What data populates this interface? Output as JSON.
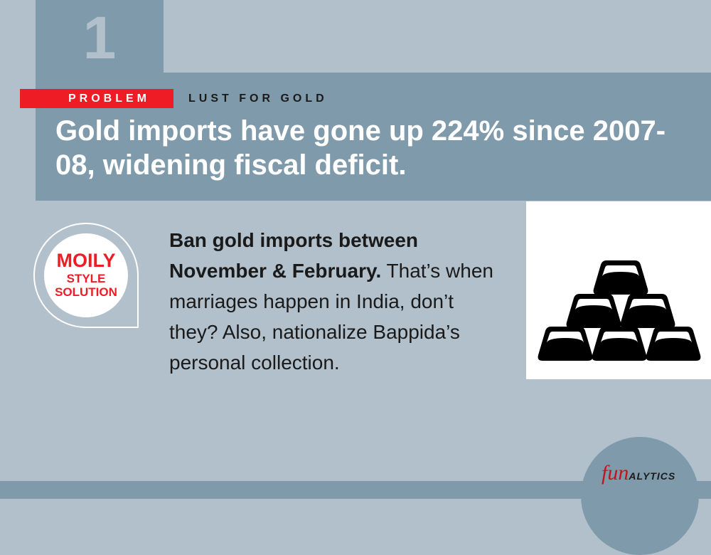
{
  "section_number": "1",
  "tag": {
    "problem_label": "PROBLEM",
    "topic": "LUST FOR GOLD"
  },
  "headline": "Gold imports have gone up 224% since 2007-08, widening fiscal deficit.",
  "badge": {
    "line1": "MOILY",
    "line2": "STYLE",
    "line3": "SOLUTION"
  },
  "body": {
    "bold": "Ban gold imports between November & February.",
    "regular": " That’s when marriages happen in India, don’t they? Also, nationalize Bappida’s personal collection."
  },
  "logo": {
    "fun": "fun",
    "alytics": "ALYTICS"
  },
  "colors": {
    "background": "#b2c0cb",
    "band": "#7f9aab",
    "accent_red": "#ee1c25",
    "text_dark": "#1a1a1a"
  },
  "icons": {
    "illustration": "gold-bars-stack-icon"
  }
}
